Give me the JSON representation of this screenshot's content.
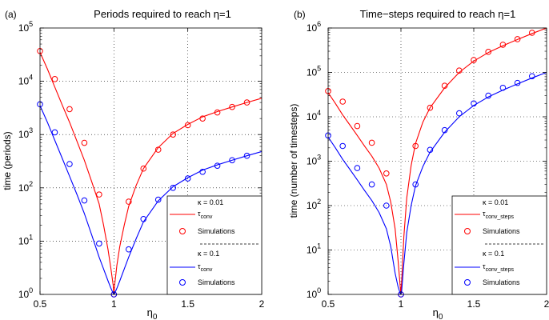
{
  "chart_data": [
    {
      "type": "line",
      "panel_label": "(a)",
      "title": "Periods required to reach η=1",
      "xlabel": "η",
      "xlabel_sub": "0",
      "ylabel": "time (periods)",
      "xlim": [
        0.5,
        2
      ],
      "ylim": [
        1,
        100000
      ],
      "yscale": "log",
      "grid": true,
      "x_ticks": [
        {
          "value": 0.5,
          "label": "0.5"
        },
        {
          "value": 1,
          "label": "1"
        },
        {
          "value": 1.5,
          "label": "1.5"
        },
        {
          "value": 2,
          "label": "2"
        }
      ],
      "y_ticks": [
        {
          "value": 1,
          "base": "10",
          "exp": "0"
        },
        {
          "value": 10,
          "base": "10",
          "exp": "1"
        },
        {
          "value": 100,
          "base": "10",
          "exp": "2"
        },
        {
          "value": 1000,
          "base": "10",
          "exp": "3"
        },
        {
          "value": 10000,
          "base": "10",
          "exp": "4"
        },
        {
          "value": 100000,
          "base": "10",
          "exp": "5"
        }
      ],
      "legend": {
        "placement": "bottom-right",
        "groups": [
          {
            "header": "κ = 0.01",
            "line_label": "τ",
            "line_label_sub": "conv",
            "marker_label": "Simulations",
            "color": "#ff0000"
          },
          {
            "header": "κ = 0.1",
            "line_label": "τ",
            "line_label_sub": "conv",
            "marker_label": "Simulations",
            "color": "#0000ff"
          }
        ]
      },
      "series": [
        {
          "kind": "line",
          "color": "#ff0000",
          "x": [
            0.5,
            0.55,
            0.6,
            0.65,
            0.7,
            0.75,
            0.8,
            0.85,
            0.9,
            0.93,
            0.96,
            0.98,
            0.995,
            1.0,
            1.005,
            1.02,
            1.04,
            1.07,
            1.1,
            1.15,
            1.2,
            1.3,
            1.4,
            1.5,
            1.6,
            1.7,
            1.8,
            1.9,
            2.0
          ],
          "y": [
            35000,
            17000,
            7800,
            3600,
            1700,
            750,
            330,
            130,
            50,
            20,
            7,
            3,
            1.5,
            1,
            1.5,
            3.5,
            8,
            20,
            45,
            110,
            230,
            570,
            1050,
            1550,
            2150,
            2700,
            3300,
            4000,
            4800
          ]
        },
        {
          "kind": "markers",
          "color": "#ff0000",
          "x": [
            0.5,
            0.6,
            0.7,
            0.8,
            0.9,
            1.0,
            1.1,
            1.2,
            1.3,
            1.4,
            1.5,
            1.6,
            1.7,
            1.8,
            1.9
          ],
          "y": [
            37000,
            11000,
            3000,
            700,
            75,
            1,
            55,
            230,
            520,
            1000,
            1500,
            2000,
            2600,
            3300,
            4000
          ]
        },
        {
          "kind": "line",
          "color": "#0000ff",
          "x": [
            0.5,
            0.55,
            0.6,
            0.65,
            0.7,
            0.75,
            0.8,
            0.85,
            0.9,
            0.93,
            0.96,
            0.98,
            0.995,
            1.0,
            1.005,
            1.02,
            1.04,
            1.07,
            1.1,
            1.15,
            1.2,
            1.3,
            1.4,
            1.5,
            1.6,
            1.7,
            1.8,
            1.9,
            2.0
          ],
          "y": [
            3500,
            1700,
            780,
            360,
            165,
            75,
            33,
            13,
            5,
            3,
            1.8,
            1.3,
            1.05,
            1,
            1.05,
            1.3,
            1.8,
            3,
            5,
            11,
            23,
            57,
            105,
            155,
            215,
            270,
            330,
            400,
            480
          ]
        },
        {
          "kind": "markers",
          "color": "#0000ff",
          "x": [
            0.5,
            0.6,
            0.7,
            0.8,
            0.9,
            1.0,
            1.1,
            1.2,
            1.3,
            1.4,
            1.5,
            1.6,
            1.7,
            1.8,
            1.9
          ],
          "y": [
            3700,
            1100,
            280,
            58,
            9,
            1,
            7,
            26,
            60,
            100,
            150,
            200,
            260,
            330,
            400
          ]
        }
      ]
    },
    {
      "type": "line",
      "panel_label": "(b)",
      "title": "Time−steps required to reach η=1",
      "xlabel": "η",
      "xlabel_sub": "0",
      "ylabel": "time (number of timesteps)",
      "xlim": [
        0.5,
        2
      ],
      "ylim": [
        1,
        1000000
      ],
      "yscale": "log",
      "grid": true,
      "x_ticks": [
        {
          "value": 0.5,
          "label": "0.5"
        },
        {
          "value": 1,
          "label": "1"
        },
        {
          "value": 1.5,
          "label": "1.5"
        },
        {
          "value": 2,
          "label": "2"
        }
      ],
      "y_ticks": [
        {
          "value": 1,
          "base": "10",
          "exp": "0"
        },
        {
          "value": 10,
          "base": "10",
          "exp": "1"
        },
        {
          "value": 100,
          "base": "10",
          "exp": "2"
        },
        {
          "value": 1000,
          "base": "10",
          "exp": "3"
        },
        {
          "value": 10000,
          "base": "10",
          "exp": "4"
        },
        {
          "value": 100000,
          "base": "10",
          "exp": "5"
        },
        {
          "value": 1000000,
          "base": "10",
          "exp": "6"
        }
      ],
      "legend": {
        "placement": "bottom-right",
        "groups": [
          {
            "header": "κ = 0.01",
            "line_label": "τ",
            "line_label_sub": "conv_steps",
            "marker_label": "Simulations",
            "color": "#ff0000"
          },
          {
            "header": "κ = 0.1",
            "line_label": "τ",
            "line_label_sub": "conv_steps",
            "marker_label": "Simulations",
            "color": "#0000ff"
          }
        ]
      },
      "series": [
        {
          "kind": "line",
          "color": "#ff0000",
          "x": [
            0.5,
            0.55,
            0.6,
            0.65,
            0.7,
            0.75,
            0.8,
            0.85,
            0.9,
            0.93,
            0.96,
            0.98,
            0.995,
            1.0,
            1.005,
            1.02,
            1.04,
            1.07,
            1.1,
            1.15,
            1.2,
            1.3,
            1.4,
            1.5,
            1.6,
            1.7,
            1.8,
            1.9,
            2.0
          ],
          "y": [
            35000,
            20000,
            11000,
            6500,
            3800,
            2200,
            1300,
            700,
            300,
            120,
            30,
            6,
            1.5,
            1,
            2,
            20,
            150,
            800,
            2500,
            7500,
            16000,
            45000,
            100000,
            180000,
            280000,
            400000,
            550000,
            750000,
            1000000
          ]
        },
        {
          "kind": "markers",
          "color": "#ff0000",
          "x": [
            0.5,
            0.6,
            0.7,
            0.8,
            0.9,
            1.0,
            1.1,
            1.2,
            1.3,
            1.4,
            1.5,
            1.6,
            1.7,
            1.8,
            1.9
          ],
          "y": [
            38000,
            22000,
            6200,
            2600,
            530,
            1,
            2200,
            16000,
            50000,
            110000,
            190000,
            290000,
            420000,
            560000,
            780000
          ]
        },
        {
          "kind": "line",
          "color": "#0000ff",
          "x": [
            0.5,
            0.55,
            0.6,
            0.65,
            0.7,
            0.75,
            0.8,
            0.85,
            0.9,
            0.93,
            0.96,
            0.98,
            0.995,
            1.0,
            1.005,
            1.02,
            1.04,
            1.07,
            1.1,
            1.15,
            1.2,
            1.3,
            1.4,
            1.5,
            1.6,
            1.7,
            1.8,
            1.9,
            2.0
          ],
          "y": [
            3500,
            2000,
            1100,
            650,
            380,
            220,
            130,
            70,
            30,
            12,
            3,
            1.5,
            1.05,
            1,
            1.2,
            5,
            25,
            100,
            280,
            750,
            1600,
            4500,
            10000,
            18000,
            28000,
            40000,
            55000,
            75000,
            100000
          ]
        },
        {
          "kind": "markers",
          "color": "#0000ff",
          "x": [
            0.5,
            0.6,
            0.7,
            0.8,
            0.9,
            1.0,
            1.1,
            1.2,
            1.3,
            1.4,
            1.5,
            1.6,
            1.7,
            1.8,
            1.9
          ],
          "y": [
            3800,
            2200,
            700,
            300,
            100,
            1,
            300,
            1800,
            5000,
            12000,
            20000,
            30000,
            45000,
            58000,
            82000
          ]
        }
      ]
    }
  ]
}
